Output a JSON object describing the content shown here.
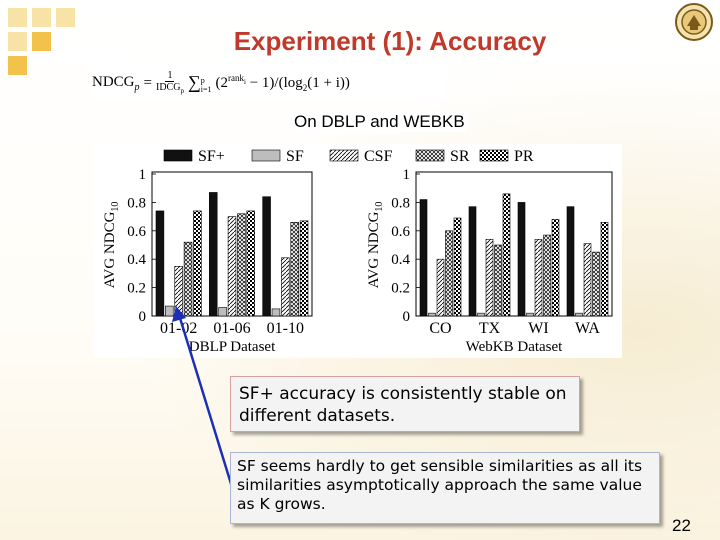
{
  "slide": {
    "title": "Experiment (1): Accuracy",
    "subtitle": "On DBLP and WEBKB",
    "page_number": "22",
    "accent_color": "#c0392b",
    "tile_color": "#f2c24a",
    "tile_light_color": "#f8e3a6"
  },
  "formula": {
    "lhs": "NDCG",
    "lhs_sub": "p",
    "equals": "=",
    "frac_num": "1",
    "frac_den": "IDCG",
    "frac_den_sub": "p",
    "sum": "∑",
    "sum_top": "p",
    "sum_bottom": "i=1",
    "rest": "(2",
    "exp": "rank",
    "exp_sub": "i",
    "rest2": "− 1)/(log",
    "log_sub": "2",
    "rest3": "(1 + i))"
  },
  "notes": {
    "note1": "SF+ accuracy is consistently stable on different datasets.",
    "note2": "SF seems hardly to get sensible similarities as all its similarities asymptotically approach the same value as K grows."
  },
  "chart_data": {
    "legend": [
      "SF+",
      "SF",
      "CSF",
      "SR",
      "PR"
    ],
    "legend_placement": "top",
    "series_styles": [
      "solid-black",
      "solid-gray",
      "hatched",
      "crosshatched",
      "checkered"
    ],
    "charts": [
      {
        "type": "bar",
        "categories": [
          "01-02",
          "01-06",
          "01-10"
        ],
        "xlabel": "DBLP Dataset",
        "ylabel": "AVG NDCG",
        "ylabel_sub": "10",
        "ylim": [
          0,
          1
        ],
        "yticks": [
          "0",
          "0.2",
          "0.4",
          "0.6",
          "0.8",
          "1"
        ],
        "grid": false,
        "series": [
          {
            "name": "SF+",
            "values": [
              0.74,
              0.87,
              0.84
            ]
          },
          {
            "name": "SF",
            "values": [
              0.07,
              0.06,
              0.05
            ]
          },
          {
            "name": "CSF",
            "values": [
              0.35,
              0.7,
              0.41
            ]
          },
          {
            "name": "SR",
            "values": [
              0.52,
              0.72,
              0.66
            ]
          },
          {
            "name": "PR",
            "values": [
              0.74,
              0.74,
              0.67
            ]
          }
        ]
      },
      {
        "type": "bar",
        "categories": [
          "CO",
          "TX",
          "WI",
          "WA"
        ],
        "xlabel": "WebKB Dataset",
        "ylabel": "AVG NDCG",
        "ylabel_sub": "10",
        "ylim": [
          0,
          1
        ],
        "yticks": [
          "0",
          "0.2",
          "0.4",
          "0.6",
          "0.8",
          "1"
        ],
        "grid": false,
        "series": [
          {
            "name": "SF+",
            "values": [
              0.82,
              0.77,
              0.8,
              0.77
            ]
          },
          {
            "name": "SF",
            "values": [
              0.02,
              0.02,
              0.02,
              0.02
            ]
          },
          {
            "name": "CSF",
            "values": [
              0.4,
              0.54,
              0.54,
              0.51
            ]
          },
          {
            "name": "SR",
            "values": [
              0.6,
              0.5,
              0.57,
              0.45
            ]
          },
          {
            "name": "PR",
            "values": [
              0.69,
              0.86,
              0.68,
              0.66
            ]
          }
        ]
      }
    ]
  }
}
